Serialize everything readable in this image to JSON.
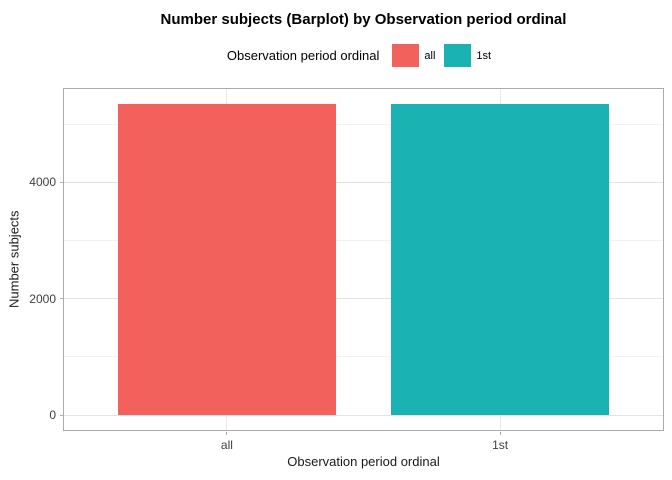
{
  "title": "Number subjects (Barplot) by Observation period ordinal",
  "chart_data": {
    "type": "bar",
    "title": "Number subjects (Barplot) by Observation period ordinal",
    "categories": [
      "all",
      "1st"
    ],
    "values": [
      5350,
      5350
    ],
    "colors": [
      "#F2615C",
      "#1AB2B3"
    ],
    "xlabel": "Observation period ordinal",
    "ylabel": "Number subjects",
    "yticks": [
      0,
      2000,
      4000
    ],
    "yticks_minor": [
      1000,
      3000,
      5000
    ],
    "ylim_display": [
      -275,
      5621
    ],
    "xlim_display": [
      0.4,
      2.6
    ],
    "bar_width_units": 0.8,
    "grid": true,
    "legend_position": "top",
    "legend": {
      "title": "Observation period ordinal",
      "entries": [
        "all",
        "1st"
      ]
    },
    "style": {
      "panel_border_color": "#ABABAB",
      "major_grid_color": "#E3E3E3",
      "minor_grid_color": "#F2F2F2",
      "axis_text_color": "#404040"
    }
  }
}
